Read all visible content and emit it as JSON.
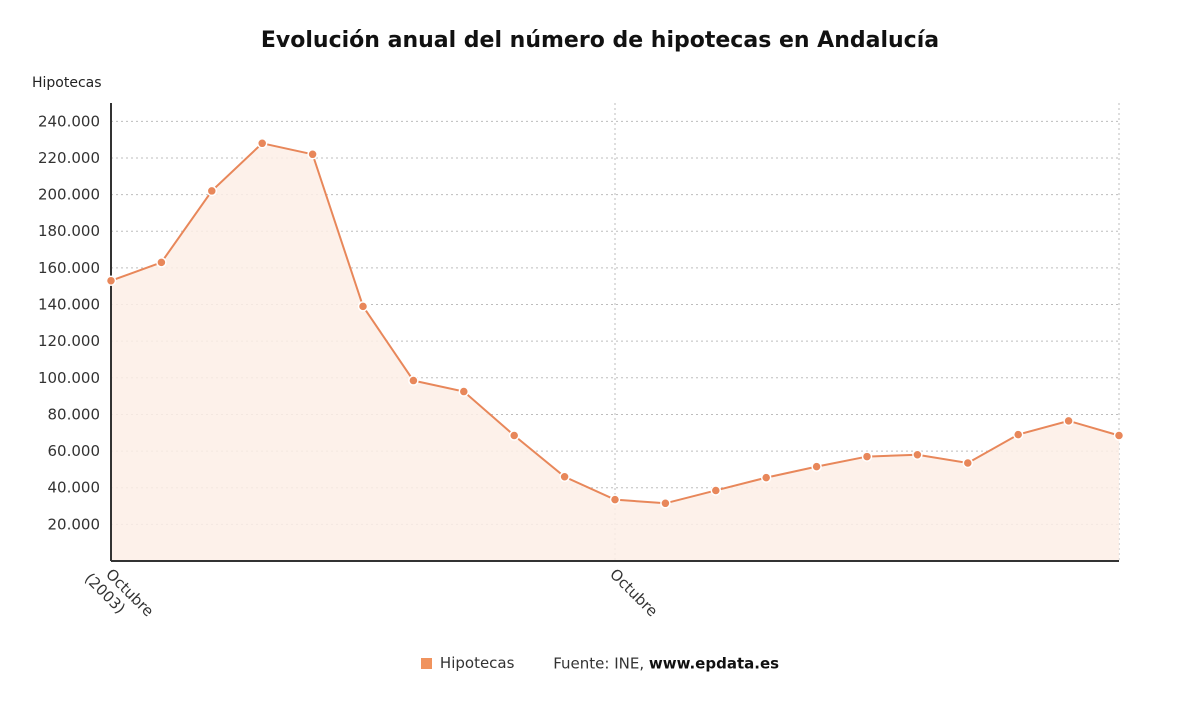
{
  "title": "Evolución anual del número de hipotecas en Andalucía",
  "legend": {
    "series_name": "Hipotecas"
  },
  "source": {
    "label": "Fuente: INE,",
    "site": "www.epdata.es"
  },
  "colors": {
    "line": "#e8875a",
    "marker": "#e8875a",
    "area": "#fdeee6",
    "grid": "#bdbdbd",
    "axis": "#333333"
  },
  "chart_data": {
    "type": "area",
    "title": "Evolución anual del número de hipotecas en Andalucía",
    "ylabel": "Hipotecas",
    "ylim": [
      0,
      250000
    ],
    "yticks": [
      20000,
      40000,
      60000,
      80000,
      100000,
      120000,
      140000,
      160000,
      180000,
      200000,
      220000,
      240000
    ],
    "ytick_labels": [
      "20.000",
      "40.000",
      "60.000",
      "80.000",
      "100.000",
      "120.000",
      "140.000",
      "160.000",
      "180.000",
      "200.000",
      "220.000",
      "240.000"
    ],
    "xtick_labels": [
      {
        "index": 0,
        "lines": [
          "Octubre",
          "(2003)"
        ]
      },
      {
        "index": 10,
        "lines": [
          "Octubre"
        ]
      }
    ],
    "grid": true,
    "legend_position": "bottom",
    "series": [
      {
        "name": "Hipotecas",
        "values": [
          153000,
          163000,
          202000,
          228000,
          222000,
          139000,
          98500,
          92500,
          68500,
          46000,
          33500,
          31500,
          38500,
          45500,
          51500,
          57000,
          58000,
          53500,
          69000,
          76500,
          68500
        ]
      }
    ]
  }
}
